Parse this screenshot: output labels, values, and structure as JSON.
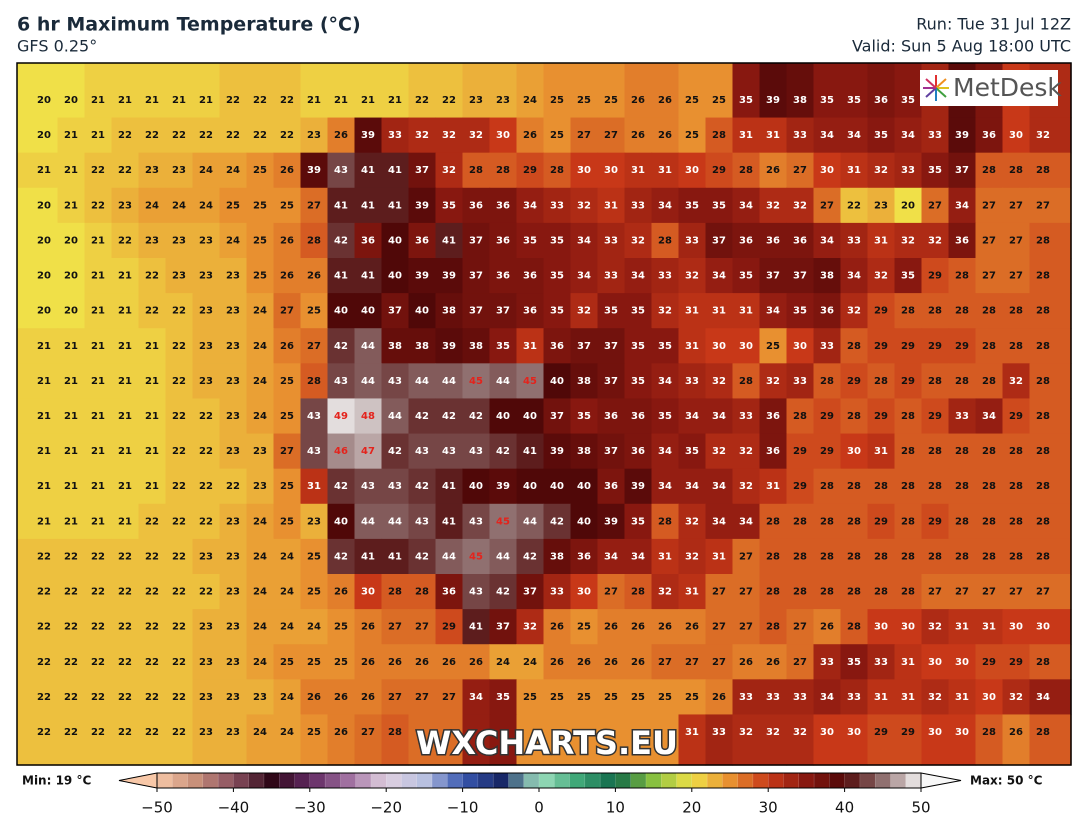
{
  "header": {
    "title": "6 hr Maximum Temperature (°C)",
    "subtitle": "GFS 0.25°",
    "run": "Run: Tue 31 Jul 12Z",
    "valid": "Valid: Sun 5 Aug 18:00 UTC"
  },
  "logo": "MetDesk",
  "watermark": "WXCHARTS.EU",
  "grid": {
    "rows": [
      [
        20,
        20,
        21,
        21,
        21,
        21,
        21,
        22,
        22,
        22,
        21,
        21,
        21,
        21,
        22,
        22,
        23,
        23,
        24,
        25,
        25,
        25,
        26,
        26,
        25,
        25,
        35,
        39,
        38,
        35,
        35,
        36,
        35,
        null,
        null,
        null,
        null,
        null
      ],
      [
        20,
        21,
        21,
        22,
        22,
        22,
        22,
        22,
        22,
        22,
        23,
        26,
        39,
        33,
        32,
        32,
        32,
        30,
        26,
        25,
        27,
        27,
        26,
        26,
        25,
        28,
        31,
        31,
        33,
        34,
        34,
        35,
        34,
        33,
        39,
        36,
        30,
        32
      ],
      [
        21,
        21,
        22,
        22,
        23,
        23,
        24,
        24,
        25,
        26,
        39,
        43,
        41,
        41,
        37,
        32,
        28,
        28,
        29,
        28,
        30,
        30,
        31,
        31,
        30,
        29,
        28,
        26,
        27,
        30,
        31,
        32,
        33,
        35,
        37,
        28,
        28,
        28
      ],
      [
        20,
        21,
        22,
        23,
        24,
        24,
        24,
        25,
        25,
        25,
        27,
        41,
        41,
        41,
        39,
        35,
        36,
        36,
        34,
        33,
        32,
        31,
        33,
        34,
        35,
        35,
        34,
        32,
        32,
        27,
        22,
        23,
        20,
        27,
        34,
        27,
        27,
        27
      ],
      [
        20,
        20,
        21,
        22,
        23,
        23,
        23,
        24,
        25,
        26,
        28,
        42,
        36,
        40,
        36,
        41,
        37,
        36,
        35,
        35,
        34,
        33,
        32,
        28,
        33,
        37,
        36,
        36,
        36,
        34,
        33,
        31,
        32,
        32,
        36,
        27,
        27,
        28
      ],
      [
        20,
        20,
        21,
        21,
        22,
        23,
        23,
        23,
        25,
        26,
        26,
        41,
        41,
        40,
        39,
        39,
        37,
        36,
        36,
        35,
        34,
        33,
        34,
        33,
        32,
        34,
        35,
        37,
        37,
        38,
        34,
        32,
        35,
        29,
        28,
        27,
        27,
        28
      ],
      [
        20,
        20,
        21,
        21,
        22,
        22,
        23,
        23,
        24,
        27,
        25,
        40,
        40,
        37,
        40,
        38,
        37,
        37,
        36,
        35,
        32,
        35,
        35,
        32,
        31,
        31,
        31,
        34,
        35,
        36,
        32,
        29,
        28,
        28,
        28,
        28,
        28,
        28
      ],
      [
        21,
        21,
        21,
        21,
        21,
        22,
        23,
        23,
        24,
        26,
        27,
        42,
        44,
        38,
        38,
        39,
        38,
        35,
        31,
        36,
        37,
        37,
        35,
        35,
        31,
        30,
        30,
        25,
        30,
        33,
        28,
        29,
        29,
        29,
        29,
        28,
        28,
        28
      ],
      [
        21,
        21,
        21,
        21,
        21,
        22,
        23,
        23,
        24,
        25,
        28,
        43,
        44,
        43,
        44,
        44,
        45,
        44,
        45,
        40,
        38,
        37,
        35,
        34,
        33,
        32,
        28,
        32,
        33,
        28,
        29,
        28,
        29,
        28,
        28,
        28,
        32,
        28
      ],
      [
        21,
        21,
        21,
        21,
        21,
        22,
        22,
        23,
        24,
        25,
        43,
        49,
        48,
        44,
        42,
        42,
        42,
        40,
        40,
        37,
        35,
        36,
        36,
        35,
        34,
        34,
        33,
        36,
        28,
        29,
        28,
        29,
        28,
        29,
        33,
        34,
        29,
        28
      ],
      [
        21,
        21,
        21,
        21,
        21,
        22,
        22,
        23,
        23,
        27,
        43,
        46,
        47,
        42,
        43,
        43,
        43,
        42,
        41,
        39,
        38,
        37,
        36,
        34,
        35,
        32,
        32,
        36,
        29,
        29,
        30,
        31,
        28,
        28,
        28,
        28,
        28,
        28
      ],
      [
        21,
        21,
        21,
        21,
        21,
        22,
        22,
        22,
        23,
        25,
        31,
        42,
        43,
        43,
        42,
        41,
        40,
        39,
        40,
        40,
        40,
        36,
        39,
        34,
        34,
        34,
        32,
        31,
        29,
        28,
        28,
        28,
        28,
        28,
        28,
        28,
        28,
        28
      ],
      [
        21,
        21,
        21,
        21,
        22,
        22,
        22,
        23,
        24,
        25,
        23,
        40,
        44,
        44,
        43,
        41,
        43,
        45,
        44,
        42,
        40,
        39,
        35,
        28,
        32,
        34,
        34,
        28,
        28,
        28,
        28,
        29,
        28,
        29,
        28,
        28,
        28,
        28
      ],
      [
        22,
        22,
        22,
        22,
        22,
        22,
        23,
        23,
        24,
        24,
        25,
        42,
        41,
        41,
        42,
        44,
        45,
        44,
        42,
        38,
        36,
        34,
        34,
        31,
        32,
        31,
        27,
        28,
        28,
        28,
        28,
        28,
        28,
        28,
        28,
        28,
        28,
        28
      ],
      [
        22,
        22,
        22,
        22,
        22,
        22,
        22,
        23,
        24,
        24,
        25,
        26,
        30,
        28,
        28,
        36,
        43,
        42,
        37,
        33,
        30,
        27,
        28,
        32,
        31,
        27,
        27,
        28,
        28,
        28,
        28,
        28,
        28,
        27,
        27,
        27,
        27,
        27
      ],
      [
        22,
        22,
        22,
        22,
        22,
        22,
        23,
        23,
        24,
        24,
        24,
        25,
        26,
        27,
        27,
        29,
        41,
        37,
        32,
        26,
        25,
        26,
        26,
        26,
        26,
        27,
        27,
        28,
        27,
        26,
        28,
        30,
        30,
        32,
        31,
        31,
        30,
        30
      ],
      [
        22,
        22,
        22,
        22,
        22,
        22,
        23,
        23,
        24,
        25,
        25,
        25,
        26,
        26,
        26,
        26,
        26,
        24,
        24,
        26,
        26,
        26,
        26,
        27,
        27,
        27,
        26,
        26,
        27,
        33,
        35,
        33,
        31,
        30,
        30,
        29,
        29,
        28
      ],
      [
        22,
        22,
        22,
        22,
        22,
        22,
        23,
        23,
        23,
        24,
        26,
        26,
        26,
        27,
        27,
        27,
        34,
        35,
        25,
        25,
        25,
        25,
        25,
        25,
        25,
        26,
        33,
        33,
        33,
        34,
        33,
        31,
        31,
        32,
        31,
        30,
        32,
        34
      ],
      [
        22,
        22,
        22,
        22,
        22,
        22,
        23,
        23,
        24,
        24,
        25,
        26,
        27,
        28,
        null,
        null,
        null,
        null,
        null,
        null,
        null,
        null,
        null,
        null,
        31,
        33,
        32,
        32,
        32,
        30,
        30,
        29,
        29,
        30,
        30,
        28,
        26,
        28
      ]
    ]
  },
  "colorbar": {
    "min_label": "Min: 19 °C",
    "max_label": "Max: 50 °C",
    "ticks": [
      {
        "value": -50,
        "label": "−50"
      },
      {
        "value": -40,
        "label": "−40"
      },
      {
        "value": -30,
        "label": "−30"
      },
      {
        "value": -20,
        "label": "−20"
      },
      {
        "value": -10,
        "label": "−10"
      },
      0,
      10,
      20,
      30,
      40,
      50
    ],
    "colors": [
      "#f8c8a8",
      "#c8907a",
      "#8a5060",
      "#300818",
      "#602860",
      "#a070a0",
      "#e0d0e0",
      "#b8c0e0",
      "#3858b0",
      "#182868",
      "#a0e0c0",
      "#40a878",
      "#106848",
      "#88c040",
      "#f0e048",
      "#e89030",
      "#c83818",
      "#881810",
      "#500808",
      "#907070",
      "#f8f8f8"
    ]
  }
}
